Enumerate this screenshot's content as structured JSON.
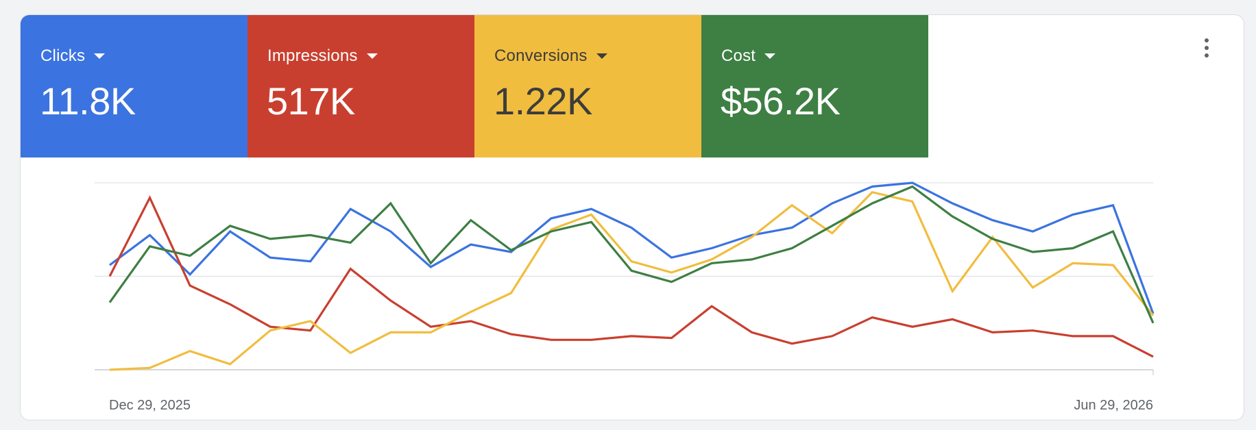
{
  "metrics": [
    {
      "label": "Clicks",
      "value": "11.8K",
      "bg": "#3b73e0",
      "fg": "#ffffff"
    },
    {
      "label": "Impressions",
      "value": "517K",
      "bg": "#c93f2f",
      "fg": "#ffffff"
    },
    {
      "label": "Conversions",
      "value": "1.22K",
      "bg": "#f1bd3f",
      "fg": "#3c3c3c"
    },
    {
      "label": "Cost",
      "value": "$56.2K",
      "bg": "#3e7f43",
      "fg": "#ffffff"
    }
  ],
  "menu_icon": "more-vert-icon",
  "chart_data": {
    "type": "line",
    "x_start_label": "Dec 29, 2025",
    "x_end_label": "Jun 29, 2026",
    "ylim": [
      0,
      100
    ],
    "grid": true,
    "series": [
      {
        "metric": "Clicks",
        "color": "#3b73e0",
        "values": [
          56,
          72,
          51,
          74,
          60,
          58,
          86,
          74,
          55,
          67,
          63,
          81,
          86,
          76,
          60,
          65,
          72,
          76,
          89,
          98,
          100,
          89,
          80,
          74,
          83,
          88,
          30
        ]
      },
      {
        "metric": "Impressions",
        "color": "#c93f2f",
        "values": [
          50,
          92,
          45,
          35,
          23,
          21,
          54,
          37,
          23,
          26,
          19,
          16,
          16,
          18,
          17,
          34,
          20,
          14,
          18,
          28,
          23,
          27,
          20,
          21,
          18,
          18,
          7
        ]
      },
      {
        "metric": "Conversions",
        "color": "#f1bd3f",
        "values": [
          0,
          1,
          10,
          3,
          21,
          26,
          9,
          20,
          20,
          31,
          41,
          75,
          83,
          58,
          52,
          59,
          71,
          88,
          73,
          95,
          90,
          42,
          71,
          44,
          57,
          56,
          29
        ]
      },
      {
        "metric": "Cost",
        "color": "#3e7f43",
        "values": [
          36,
          66,
          61,
          77,
          70,
          72,
          68,
          89,
          57,
          80,
          64,
          74,
          79,
          53,
          47,
          57,
          59,
          65,
          77,
          89,
          98,
          82,
          70,
          63,
          65,
          74,
          25
        ]
      }
    ]
  }
}
